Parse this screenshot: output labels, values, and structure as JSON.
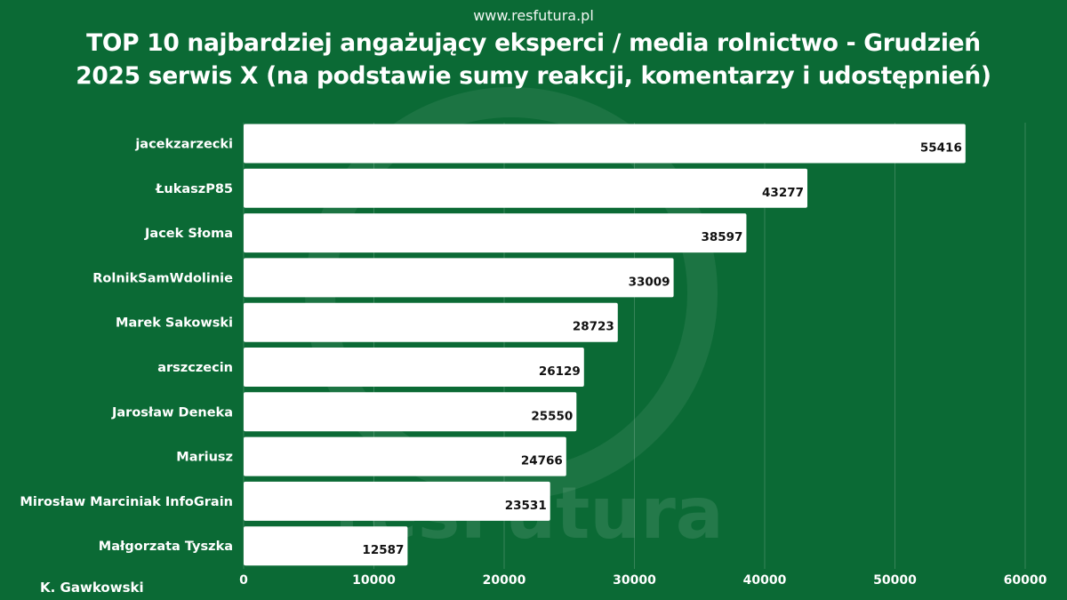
{
  "header": {
    "site": "www.resfutura.pl",
    "title_line1": "TOP 10 najbardziej angażujący eksperci / media rolnictwo - Grudzień",
    "title_line2": "2025 serwis X  (na podstawie sumy reakcji, komentarzy i udostępnień)"
  },
  "footer": {
    "author": "K. Gawkowski"
  },
  "watermark": {
    "text": "resFutura"
  },
  "colors": {
    "background": "#0b6a35",
    "bar": "#ffffff",
    "grid": "#ffffff",
    "value_text": "#111111"
  },
  "chart_data": {
    "type": "bar",
    "orientation": "horizontal",
    "title": "TOP 10 najbardziej angażujący eksperci / media rolnictwo - Grudzień 2025 serwis X  (na podstawie sumy reakcji, komentarzy i udostępnień)",
    "categories": [
      "jacekzarzecki",
      "ŁukaszP85",
      "Jacek Słoma",
      "RolnikSamWdolinie",
      "Marek Sakowski",
      "arszczecin",
      "Jarosław Deneka",
      "Mariusz",
      "Mirosław Marciniak InfoGrain",
      "Małgorzata Tyszka"
    ],
    "values": [
      55416,
      43277,
      38597,
      33009,
      28723,
      26129,
      25550,
      24766,
      23531,
      12587
    ],
    "xlim": [
      0,
      60000
    ],
    "xticks": [
      0,
      10000,
      20000,
      30000,
      40000,
      50000,
      60000
    ],
    "grid": true,
    "data_labels": true,
    "legend": "none"
  }
}
